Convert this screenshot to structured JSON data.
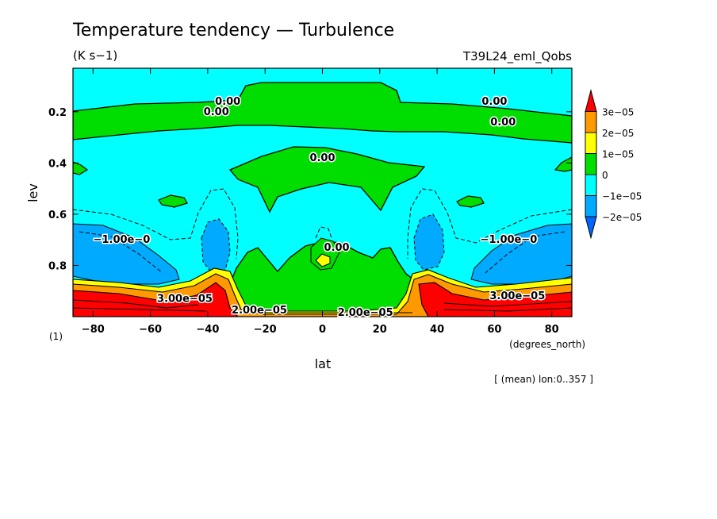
{
  "chart_data": {
    "type": "heatmap",
    "title": "Temperature tendency — Turbulence",
    "units": "(K s−1)",
    "run_name": "T39L24_eml_Qobs",
    "xlabel": "lat",
    "x_units": "(degrees_north)",
    "ylabel": "lev",
    "y_units": "(1)",
    "xlim": [
      -87,
      87
    ],
    "ylim": [
      1.0,
      0.03
    ],
    "x_ticks": [
      "−80",
      "−60",
      "−40",
      "−20",
      "0",
      "20",
      "40",
      "60",
      "80"
    ],
    "x_tick_values": [
      -80,
      -60,
      -40,
      -20,
      0,
      20,
      40,
      60,
      80
    ],
    "y_ticks": [
      "0.2",
      "0.4",
      "0.6",
      "0.8"
    ],
    "y_tick_values": [
      0.2,
      0.4,
      0.6,
      0.8
    ],
    "footnote": "[ (mean) lon:0..357 ]",
    "colorbar": {
      "labels": [
        "3e−05",
        "2e−05",
        "1e−05",
        "0",
        "−1e−05",
        "−2e−05"
      ],
      "bands": [
        {
          "min": 3e-05,
          "color": "#ff0000"
        },
        {
          "min": 2e-05,
          "max": 3e-05,
          "color": "#ff9900"
        },
        {
          "min": 1e-05,
          "max": 2e-05,
          "color": "#ffff00"
        },
        {
          "min": 0,
          "max": 1e-05,
          "color": "#00dd00"
        },
        {
          "min": -1e-05,
          "max": 0,
          "color": "#00ffff"
        },
        {
          "min": -2e-05,
          "max": -1e-05,
          "color": "#00aaff"
        },
        {
          "max": -2e-05,
          "color": "#0066ff"
        }
      ]
    },
    "contour_labels": [
      {
        "text": "0.00",
        "lat": -33,
        "lev": 0.16
      },
      {
        "text": "0.00",
        "lat": -37,
        "lev": 0.2
      },
      {
        "text": "0.00",
        "lat": 60,
        "lev": 0.16
      },
      {
        "text": "0.00",
        "lat": 63,
        "lev": 0.24
      },
      {
        "text": "0.00",
        "lat": 0,
        "lev": 0.38
      },
      {
        "text": "0.00",
        "lat": 5,
        "lev": 0.73
      },
      {
        "text": "−1.00e−0",
        "lat": -70,
        "lev": 0.7
      },
      {
        "text": "−1.00e−0",
        "lat": 65,
        "lev": 0.7
      },
      {
        "text": "3.00e−05",
        "lat": -48,
        "lev": 0.93
      },
      {
        "text": "3.00e−05",
        "lat": 68,
        "lev": 0.92
      },
      {
        "text": "2.00e−05",
        "lat": -22,
        "lev": 0.975
      },
      {
        "text": "2.00e−05",
        "lat": 15,
        "lev": 0.985
      }
    ]
  }
}
